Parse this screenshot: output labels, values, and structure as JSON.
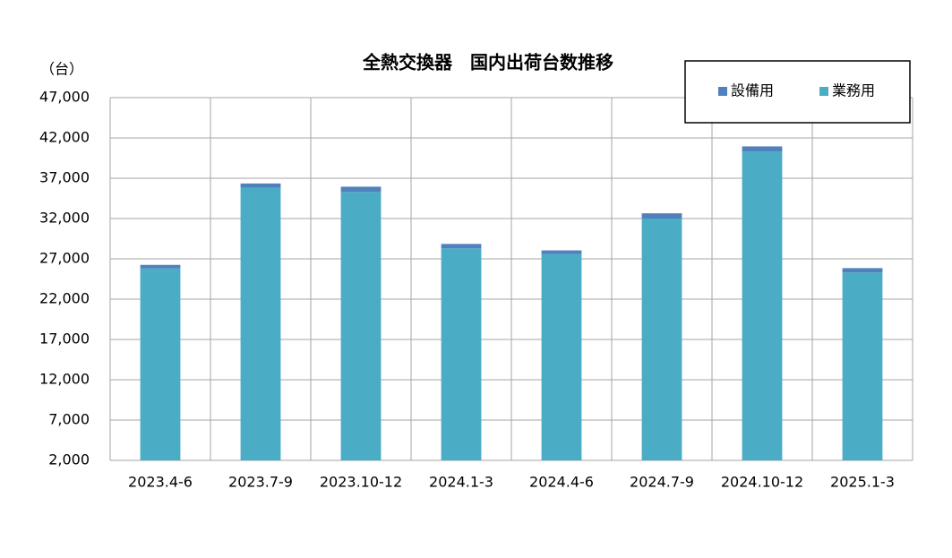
{
  "chart_data": {
    "type": "stacked_bar",
    "title": "全熱交換器　国内出荷台数推移",
    "y_unit_label": "（台）",
    "categories": [
      "2023.4-6",
      "2023.7-9",
      "2023.10-12",
      "2024.1-3",
      "2024.4-6",
      "2024.7-9",
      "2024.10-12",
      "2025.1-3"
    ],
    "series": [
      {
        "name": "業務用",
        "color": "#4bacc6",
        "values": [
          25800,
          35800,
          35300,
          28300,
          27600,
          32000,
          40300,
          25300
        ]
      },
      {
        "name": "設備用",
        "color": "#4f81bd",
        "values": [
          450,
          550,
          650,
          550,
          450,
          650,
          650,
          550
        ]
      }
    ],
    "legend_order": [
      1,
      0
    ],
    "ylim": [
      2000,
      47000
    ],
    "yticks": [
      {
        "value": 2000,
        "label": "2,000"
      },
      {
        "value": 7000,
        "label": "7,000"
      },
      {
        "value": 12000,
        "label": "12,000"
      },
      {
        "value": 17000,
        "label": "17,000"
      },
      {
        "value": 22000,
        "label": "22,000"
      },
      {
        "value": 27000,
        "label": "27,000"
      },
      {
        "value": 32000,
        "label": "32,000"
      },
      {
        "value": 37000,
        "label": "37,000"
      },
      {
        "value": 42000,
        "label": "42,000"
      },
      {
        "value": 47000,
        "label": "47,000"
      }
    ],
    "grid": true,
    "legend": "top-right"
  }
}
